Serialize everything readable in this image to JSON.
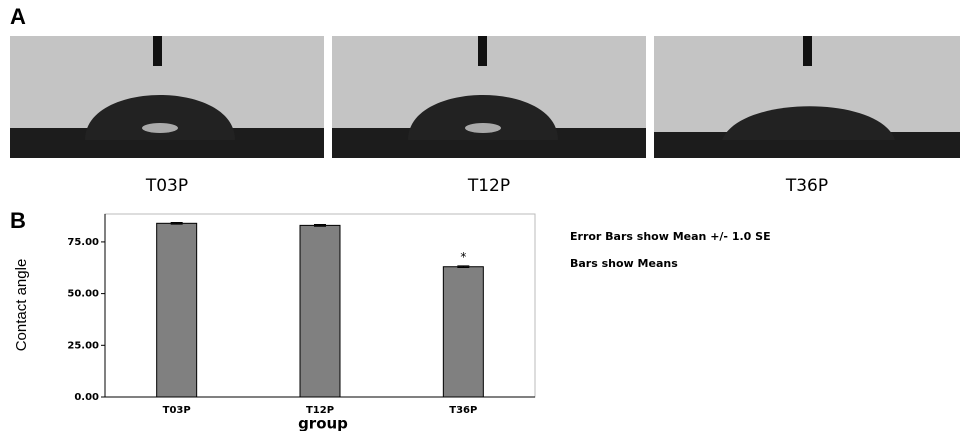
{
  "panel_a": {
    "label": "A",
    "captions": [
      "T03P",
      "T12P",
      "T36P"
    ]
  },
  "chart_data": {
    "type": "bar",
    "panel_label": "B",
    "xlabel": "group",
    "ylabel": "Contact angle",
    "categories": [
      "T03P",
      "T12P",
      "T36P"
    ],
    "values": [
      84,
      83,
      63
    ],
    "errors": [
      0.4,
      0.4,
      0.4
    ],
    "color": "#808080",
    "ylim": [
      0,
      88.5
    ],
    "yticks": [
      {
        "value": 0,
        "label": "0.00"
      },
      {
        "value": 25,
        "label": "25.00"
      },
      {
        "value": 50,
        "label": "50.00"
      },
      {
        "value": 75,
        "label": "75.00"
      }
    ],
    "annotations": [
      {
        "text": "*",
        "x": "T36P"
      }
    ],
    "notes": [
      "Error Bars show Mean +/- 1.0 SE",
      "Bars show Means"
    ]
  }
}
